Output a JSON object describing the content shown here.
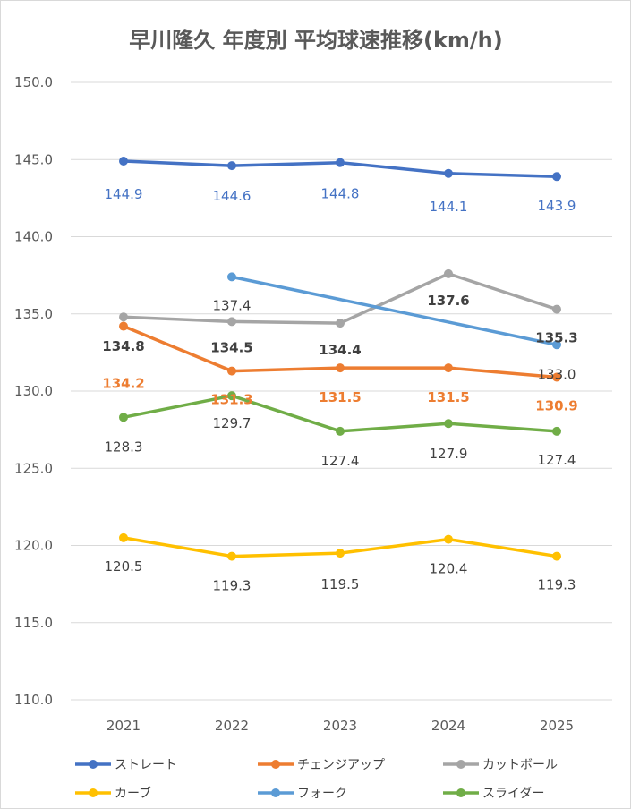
{
  "chart_data": {
    "type": "line",
    "title": "早川隆久 年度別 平均球速推移(km/h)",
    "xlabel": "",
    "ylabel": "",
    "categories": [
      "2021",
      "2022",
      "2023",
      "2024",
      "2025"
    ],
    "ylim": [
      110.0,
      150.0
    ],
    "yticks": [
      "110.0",
      "115.0",
      "120.0",
      "125.0",
      "130.0",
      "135.0",
      "140.0",
      "145.0",
      "150.0"
    ],
    "grid": true,
    "legend_position": "bottom",
    "series": [
      {
        "name": "ストレート",
        "color": "#4472c4",
        "label_color": "#4472c4",
        "values": [
          144.9,
          144.6,
          144.8,
          144.1,
          143.9
        ],
        "labels": [
          "144.9",
          "144.6",
          "144.8",
          "144.1",
          "143.9"
        ]
      },
      {
        "name": "チェンジアップ",
        "color": "#ed7d31",
        "label_color": "#ed7d31",
        "values": [
          134.2,
          131.3,
          131.5,
          131.5,
          130.9
        ],
        "labels": [
          "134.2",
          "131.3",
          "131.5",
          "131.5",
          "130.9"
        ]
      },
      {
        "name": "カットボール",
        "color": "#a5a5a5",
        "label_color": "#404040",
        "values": [
          134.8,
          134.5,
          134.4,
          137.6,
          135.3
        ],
        "labels": [
          "134.8",
          "134.5",
          "134.4",
          "137.6",
          "135.3"
        ]
      },
      {
        "name": "カーブ",
        "color": "#ffc000",
        "label_color": "#404040",
        "values": [
          120.5,
          119.3,
          119.5,
          120.4,
          119.3
        ],
        "labels": [
          "120.5",
          "119.3",
          "119.5",
          "120.4",
          "119.3"
        ]
      },
      {
        "name": "フォーク",
        "color": "#5b9bd5",
        "label_color": "#404040",
        "values": [
          null,
          137.4,
          null,
          null,
          133.0
        ],
        "labels": [
          "",
          "137.4",
          "",
          "",
          "133.0"
        ]
      },
      {
        "name": "スライダー",
        "color": "#70ad47",
        "label_color": "#404040",
        "values": [
          128.3,
          129.7,
          127.4,
          127.9,
          127.4
        ],
        "labels": [
          "128.3",
          "129.7",
          "127.4",
          "127.9",
          "127.4"
        ]
      }
    ]
  }
}
